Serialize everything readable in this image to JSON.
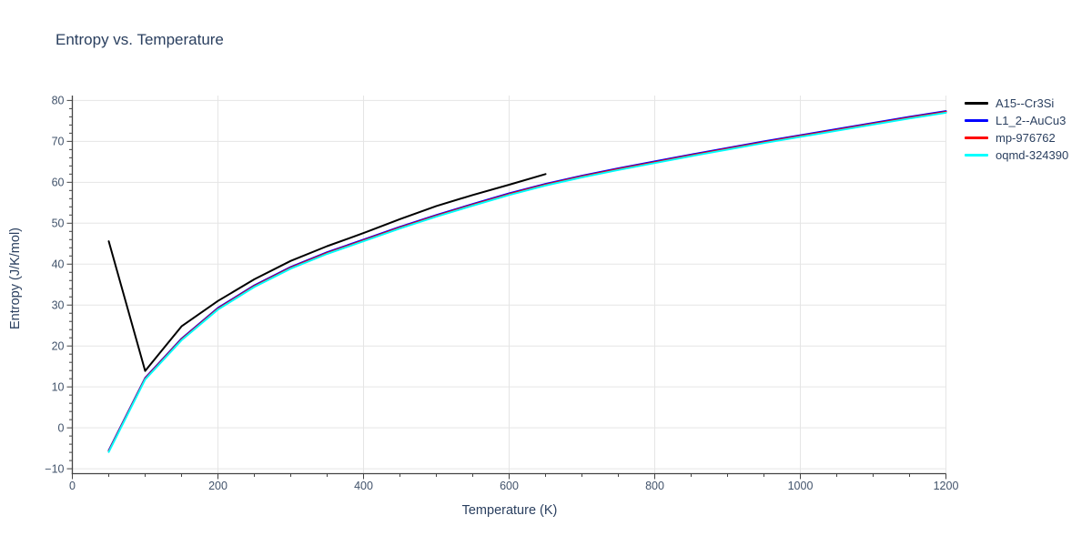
{
  "chart_data": {
    "type": "line",
    "title": "Entropy vs. Temperature",
    "xlabel": "Temperature (K)",
    "ylabel": "Entropy (J/K/mol)",
    "xlim": [
      0,
      1200
    ],
    "ylim": [
      -11.2,
      81.2
    ],
    "x_major_ticks": [
      0,
      200,
      400,
      600,
      800,
      1000,
      1200
    ],
    "x_minor_step": 50,
    "y_major_ticks": [
      -10,
      0,
      10,
      20,
      30,
      40,
      50,
      60,
      70,
      80
    ],
    "y_minor_step": 2,
    "grid": true,
    "legend_position": "outside-top-right",
    "background": "#ffffff",
    "grid_color": "#e5e5e5",
    "axis_color": "#444444",
    "tick_label_color": "#42536b",
    "title_color": "#2a3f5f",
    "series": [
      {
        "name": "A15--Cr3Si",
        "color": "#000000",
        "points": [
          [
            50,
            45.6
          ],
          [
            100,
            13.9
          ],
          [
            150,
            24.8
          ],
          [
            200,
            31.0
          ],
          [
            250,
            36.3
          ],
          [
            300,
            40.8
          ],
          [
            350,
            44.4
          ],
          [
            400,
            47.6
          ],
          [
            450,
            51.0
          ],
          [
            500,
            54.2
          ],
          [
            550,
            56.9
          ],
          [
            600,
            59.4
          ],
          [
            650,
            62.0
          ]
        ]
      },
      {
        "name": "L1_2--AuCu3",
        "color": "#0000ff",
        "points": [
          [
            50,
            -5.5
          ],
          [
            100,
            12.2
          ],
          [
            150,
            21.8
          ],
          [
            200,
            29.3
          ],
          [
            250,
            34.8
          ],
          [
            300,
            39.3
          ],
          [
            350,
            42.9
          ],
          [
            400,
            46.0
          ],
          [
            450,
            49.1
          ],
          [
            500,
            52.0
          ],
          [
            550,
            54.7
          ],
          [
            600,
            57.3
          ],
          [
            650,
            59.6
          ],
          [
            700,
            61.6
          ],
          [
            750,
            63.4
          ],
          [
            800,
            65.1
          ],
          [
            850,
            66.8
          ],
          [
            900,
            68.4
          ],
          [
            950,
            70.0
          ],
          [
            1000,
            71.5
          ],
          [
            1050,
            73.0
          ],
          [
            1100,
            74.5
          ],
          [
            1150,
            76.0
          ],
          [
            1200,
            77.4
          ]
        ]
      },
      {
        "name": "mp-976762",
        "color": "#ff0000",
        "points": [
          [
            50,
            -5.7
          ],
          [
            100,
            12.0
          ],
          [
            150,
            21.6
          ],
          [
            200,
            29.1
          ],
          [
            250,
            34.6
          ],
          [
            300,
            39.1
          ],
          [
            350,
            42.7
          ],
          [
            400,
            45.8
          ],
          [
            450,
            48.9
          ],
          [
            500,
            51.8
          ],
          [
            550,
            54.5
          ],
          [
            600,
            57.1
          ],
          [
            650,
            59.4
          ],
          [
            700,
            61.4
          ],
          [
            750,
            63.2
          ],
          [
            800,
            64.9
          ],
          [
            850,
            66.6
          ],
          [
            900,
            68.2
          ],
          [
            950,
            69.8
          ],
          [
            1000,
            71.3
          ],
          [
            1050,
            72.8
          ],
          [
            1100,
            74.3
          ],
          [
            1150,
            75.8
          ],
          [
            1200,
            77.2
          ]
        ]
      },
      {
        "name": "oqmd-324390",
        "color": "#00ffff",
        "points": [
          [
            50,
            -5.9
          ],
          [
            100,
            11.8
          ],
          [
            150,
            21.4
          ],
          [
            200,
            28.9
          ],
          [
            250,
            34.4
          ],
          [
            300,
            38.9
          ],
          [
            350,
            42.5
          ],
          [
            400,
            45.6
          ],
          [
            450,
            48.7
          ],
          [
            500,
            51.6
          ],
          [
            550,
            54.3
          ],
          [
            600,
            56.9
          ],
          [
            650,
            59.2
          ],
          [
            700,
            61.2
          ],
          [
            750,
            63.0
          ],
          [
            800,
            64.7
          ],
          [
            850,
            66.4
          ],
          [
            900,
            68.0
          ],
          [
            950,
            69.6
          ],
          [
            1000,
            71.1
          ],
          [
            1050,
            72.6
          ],
          [
            1100,
            74.1
          ],
          [
            1150,
            75.6
          ],
          [
            1200,
            77.0
          ]
        ]
      }
    ]
  }
}
